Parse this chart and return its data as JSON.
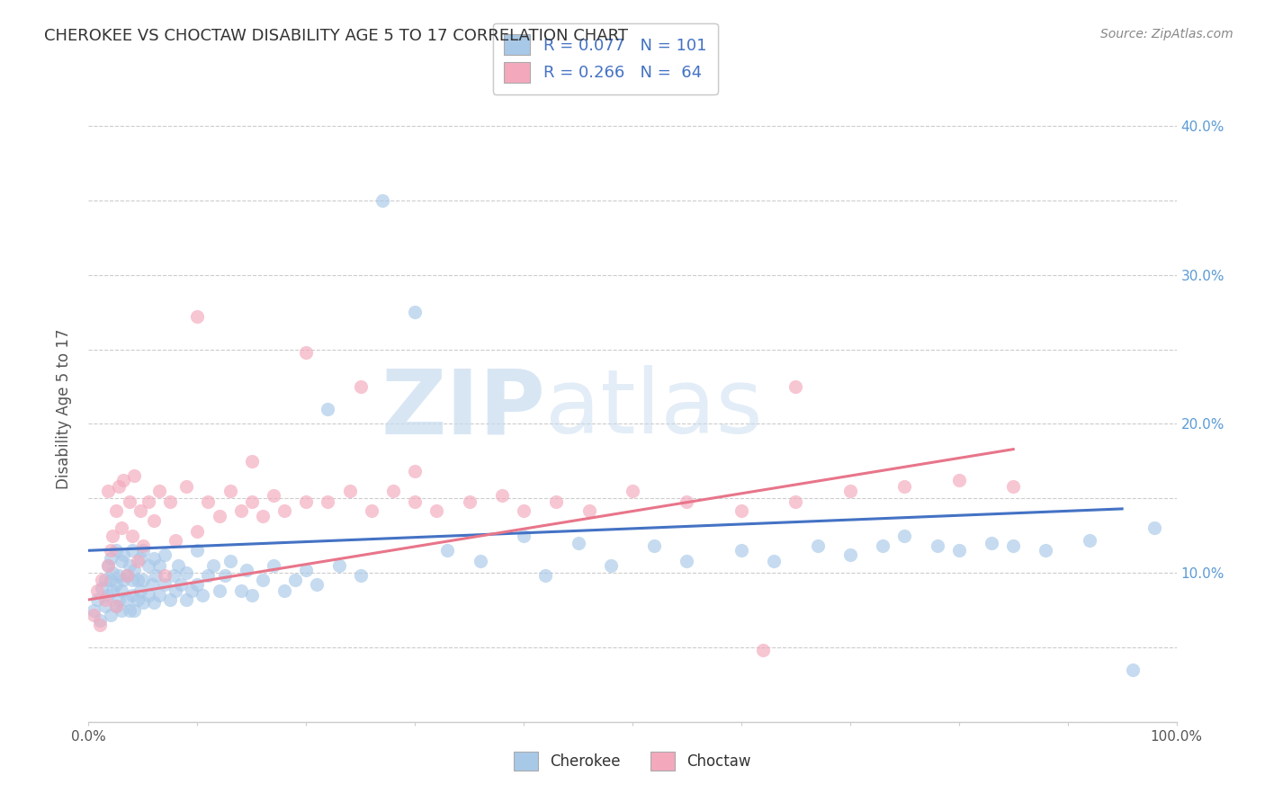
{
  "title": "CHEROKEE VS CHOCTAW DISABILITY AGE 5 TO 17 CORRELATION CHART",
  "source": "Source: ZipAtlas.com",
  "ylabel": "Disability Age 5 to 17",
  "xlim": [
    0.0,
    1.0
  ],
  "ylim": [
    0.0,
    0.42
  ],
  "cherokee_color": "#A8C8E8",
  "choctaw_color": "#F4A8BC",
  "cherokee_R": 0.077,
  "cherokee_N": 101,
  "choctaw_R": 0.266,
  "choctaw_N": 64,
  "cherokee_line_color": "#4472C4",
  "choctaw_line_color": "#E8758A",
  "watermark_zip": "ZIP",
  "watermark_atlas": "atlas",
  "legend_label_1": "Cherokee",
  "legend_label_2": "Choctaw",
  "background_color": "#FFFFFF",
  "grid_color": "#CCCCCC",
  "title_color": "#333333",
  "cherokee_line_x": [
    0.0,
    0.95
  ],
  "cherokee_line_y": [
    0.115,
    0.143
  ],
  "choctaw_line_x": [
    0.0,
    0.85
  ],
  "choctaw_line_y": [
    0.082,
    0.183
  ],
  "cherokee_x": [
    0.005,
    0.008,
    0.01,
    0.012,
    0.015,
    0.015,
    0.018,
    0.018,
    0.02,
    0.02,
    0.02,
    0.022,
    0.022,
    0.025,
    0.025,
    0.025,
    0.028,
    0.028,
    0.03,
    0.03,
    0.03,
    0.032,
    0.032,
    0.035,
    0.035,
    0.038,
    0.038,
    0.04,
    0.04,
    0.04,
    0.042,
    0.042,
    0.045,
    0.045,
    0.048,
    0.048,
    0.05,
    0.05,
    0.05,
    0.055,
    0.055,
    0.058,
    0.06,
    0.06,
    0.062,
    0.065,
    0.065,
    0.07,
    0.07,
    0.075,
    0.078,
    0.08,
    0.082,
    0.085,
    0.09,
    0.09,
    0.095,
    0.1,
    0.1,
    0.105,
    0.11,
    0.115,
    0.12,
    0.125,
    0.13,
    0.14,
    0.145,
    0.15,
    0.16,
    0.17,
    0.18,
    0.19,
    0.2,
    0.21,
    0.22,
    0.23,
    0.25,
    0.27,
    0.3,
    0.33,
    0.36,
    0.4,
    0.42,
    0.45,
    0.48,
    0.52,
    0.55,
    0.6,
    0.63,
    0.67,
    0.7,
    0.73,
    0.75,
    0.78,
    0.8,
    0.83,
    0.85,
    0.88,
    0.92,
    0.96,
    0.98
  ],
  "cherokee_y": [
    0.075,
    0.082,
    0.068,
    0.09,
    0.095,
    0.078,
    0.085,
    0.105,
    0.072,
    0.095,
    0.11,
    0.088,
    0.1,
    0.078,
    0.092,
    0.115,
    0.082,
    0.098,
    0.075,
    0.088,
    0.108,
    0.095,
    0.112,
    0.082,
    0.098,
    0.075,
    0.105,
    0.085,
    0.095,
    0.115,
    0.075,
    0.102,
    0.082,
    0.095,
    0.088,
    0.11,
    0.08,
    0.095,
    0.115,
    0.085,
    0.105,
    0.092,
    0.08,
    0.11,
    0.098,
    0.085,
    0.105,
    0.092,
    0.112,
    0.082,
    0.098,
    0.088,
    0.105,
    0.092,
    0.082,
    0.1,
    0.088,
    0.092,
    0.115,
    0.085,
    0.098,
    0.105,
    0.088,
    0.098,
    0.108,
    0.088,
    0.102,
    0.085,
    0.095,
    0.105,
    0.088,
    0.095,
    0.102,
    0.092,
    0.21,
    0.105,
    0.098,
    0.35,
    0.275,
    0.115,
    0.108,
    0.125,
    0.098,
    0.12,
    0.105,
    0.118,
    0.108,
    0.115,
    0.108,
    0.118,
    0.112,
    0.118,
    0.125,
    0.118,
    0.115,
    0.12,
    0.118,
    0.115,
    0.122,
    0.035,
    0.13
  ],
  "choctaw_x": [
    0.005,
    0.008,
    0.01,
    0.012,
    0.015,
    0.018,
    0.018,
    0.02,
    0.022,
    0.025,
    0.025,
    0.028,
    0.03,
    0.032,
    0.035,
    0.038,
    0.04,
    0.042,
    0.045,
    0.048,
    0.05,
    0.055,
    0.06,
    0.065,
    0.07,
    0.075,
    0.08,
    0.09,
    0.1,
    0.11,
    0.12,
    0.13,
    0.14,
    0.15,
    0.16,
    0.17,
    0.18,
    0.2,
    0.22,
    0.24,
    0.26,
    0.28,
    0.3,
    0.32,
    0.35,
    0.38,
    0.4,
    0.43,
    0.46,
    0.5,
    0.55,
    0.6,
    0.65,
    0.7,
    0.75,
    0.8,
    0.85,
    0.1,
    0.15,
    0.2,
    0.25,
    0.3,
    0.65,
    0.62
  ],
  "choctaw_y": [
    0.072,
    0.088,
    0.065,
    0.095,
    0.082,
    0.105,
    0.155,
    0.115,
    0.125,
    0.078,
    0.142,
    0.158,
    0.13,
    0.162,
    0.098,
    0.148,
    0.125,
    0.165,
    0.108,
    0.142,
    0.118,
    0.148,
    0.135,
    0.155,
    0.098,
    0.148,
    0.122,
    0.158,
    0.128,
    0.148,
    0.138,
    0.155,
    0.142,
    0.148,
    0.138,
    0.152,
    0.142,
    0.148,
    0.148,
    0.155,
    0.142,
    0.155,
    0.148,
    0.142,
    0.148,
    0.152,
    0.142,
    0.148,
    0.142,
    0.155,
    0.148,
    0.142,
    0.148,
    0.155,
    0.158,
    0.162,
    0.158,
    0.272,
    0.175,
    0.248,
    0.225,
    0.168,
    0.225,
    0.048
  ]
}
